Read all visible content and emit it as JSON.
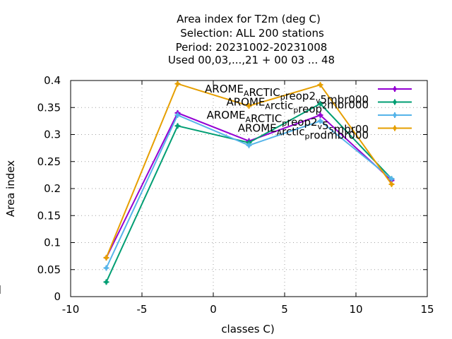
{
  "chart_data": {
    "type": "line",
    "title_lines": [
      "Area index  for T2m (deg C)",
      "Selection: ALL    200 stations",
      "Period: 20231002-20231008",
      "Used  00,03,...,21  + 00 03 ... 48"
    ],
    "xlabel": "classes C)",
    "ylabel": "Area index",
    "xlim": [
      -10,
      15
    ],
    "ylim": [
      0,
      0.4
    ],
    "xticks": [
      "-10",
      "-5",
      "0",
      "5",
      "10",
      "15"
    ],
    "yticks": [
      "0",
      "0.05",
      "0.1",
      "0.15",
      "0.2",
      "0.25",
      "0.3",
      "0.35",
      "0.4"
    ],
    "grid": true,
    "legend_position": "top-right",
    "x": [
      -7.5,
      -2.5,
      2.5,
      7.5,
      12.5
    ],
    "series": [
      {
        "legend": [
          [
            "AROME",
            ""
          ],
          [
            "A",
            "sub"
          ],
          [
            "RCTIC",
            ""
          ],
          [
            "p",
            "sub"
          ],
          [
            "reop2",
            ""
          ],
          [
            "v",
            "sub"
          ],
          [
            "5mbr000",
            ""
          ]
        ],
        "color": "#9400d3",
        "values": [
          0.072,
          0.34,
          0.288,
          0.336,
          0.215
        ]
      },
      {
        "legend": [
          [
            "AROME",
            ""
          ],
          [
            "A",
            "sub"
          ],
          [
            "rctic",
            ""
          ],
          [
            "p",
            "sub"
          ],
          [
            "reop",
            ""
          ],
          [
            "2",
            "sup"
          ],
          [
            "mbr000",
            ""
          ]
        ],
        "color": "#009e73",
        "values": [
          0.027,
          0.316,
          0.285,
          0.357,
          0.218
        ]
      },
      {
        "legend": [
          [
            "AROME",
            ""
          ],
          [
            "A",
            "sub"
          ],
          [
            "RCTIC",
            ""
          ],
          [
            "p",
            "sub"
          ],
          [
            "reop2",
            ""
          ],
          [
            "v",
            "sub"
          ],
          [
            "5",
            ""
          ],
          [
            "5",
            "sub"
          ],
          [
            "mbr00",
            ""
          ]
        ],
        "color": "#56b4e9",
        "values": [
          0.053,
          0.336,
          0.28,
          0.325,
          0.218
        ]
      },
      {
        "legend": [
          [
            "AROME",
            ""
          ],
          [
            "A",
            "sub"
          ],
          [
            "rctic",
            ""
          ],
          [
            "p",
            "sub"
          ],
          [
            "rodmbr000",
            ""
          ]
        ],
        "color": "#e69f00",
        "values": [
          0.072,
          0.394,
          0.353,
          0.392,
          0.208
        ]
      }
    ]
  }
}
